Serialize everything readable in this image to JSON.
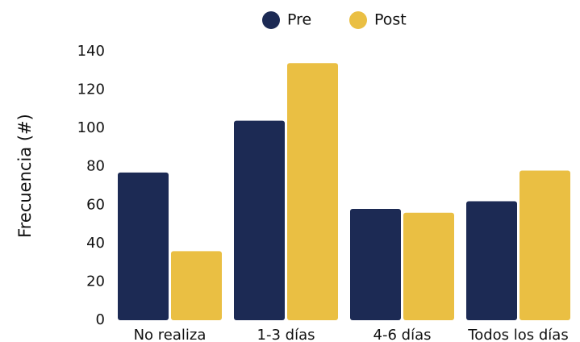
{
  "chart_data": {
    "type": "bar",
    "title": "",
    "xlabel": "",
    "ylabel": "Frecuencia (#)",
    "ylim": [
      0,
      140
    ],
    "yticks": [
      0,
      20,
      40,
      60,
      80,
      100,
      120,
      140
    ],
    "grid": false,
    "legend_position": "top-center",
    "categories": [
      "No realiza",
      "1-3 días",
      "4-6 días",
      "Todos los días"
    ],
    "series": [
      {
        "name": "Pre",
        "color": "#1c2a54",
        "values": [
          77,
          104,
          58,
          62
        ]
      },
      {
        "name": "Post",
        "color": "#eabf43",
        "values": [
          36,
          134,
          56,
          78
        ]
      }
    ]
  }
}
